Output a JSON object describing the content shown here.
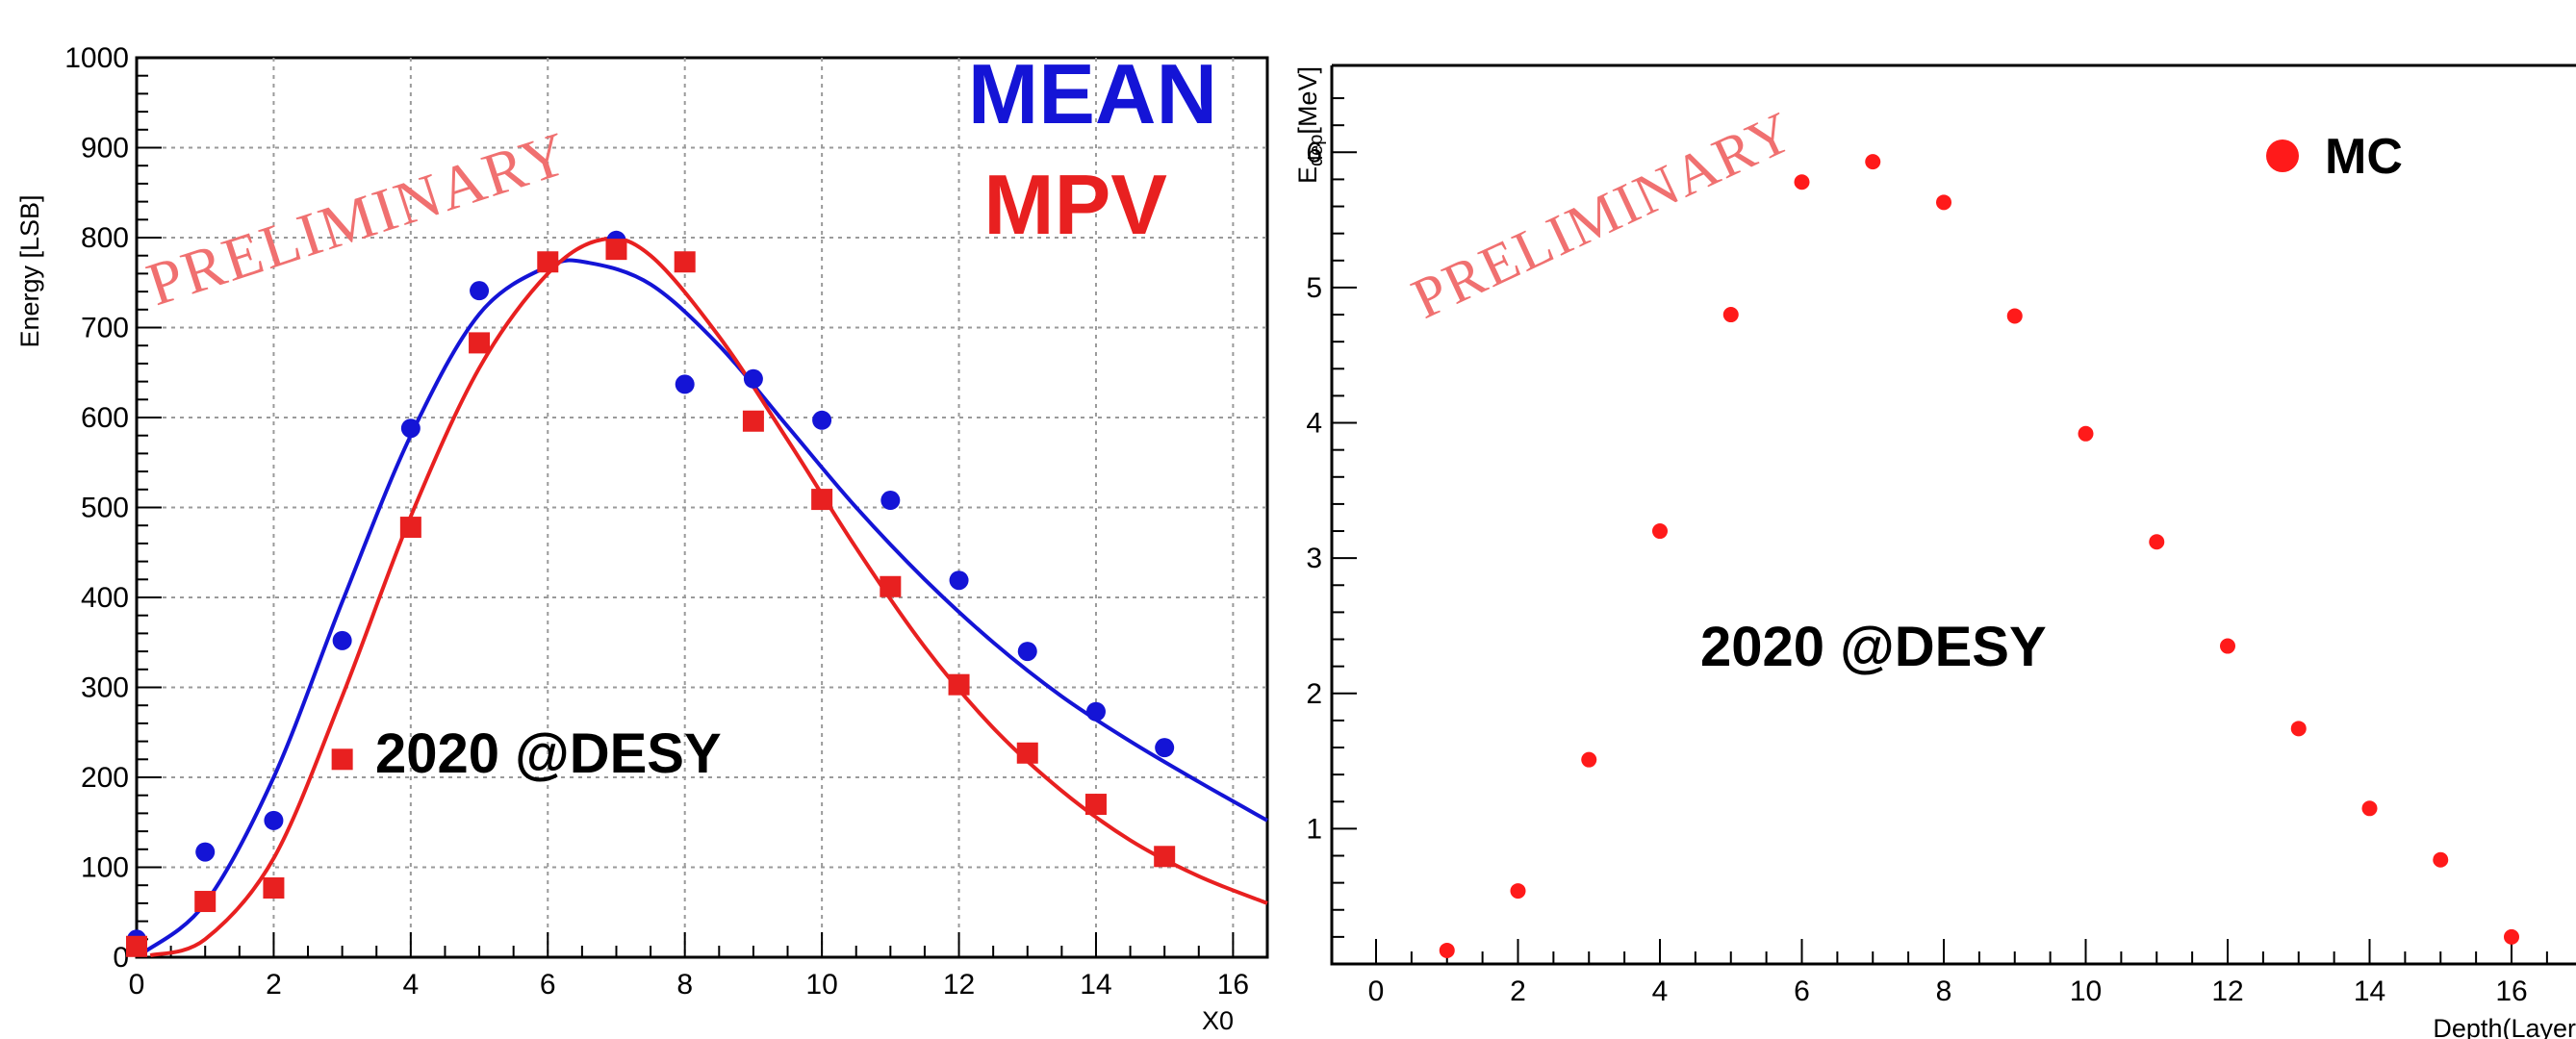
{
  "annotations": {
    "preliminary": "PRELIMINARY",
    "beam_test": "2020 @DESY"
  },
  "colors": {
    "mean": "#1414d6",
    "mpv": "#e82020",
    "mc": "#ff1a1a",
    "watermark": "#f07070"
  },
  "chart_data": [
    {
      "type": "scatter",
      "xlabel": "X0",
      "ylabel": "Energy [LSB]",
      "xlim": [
        0,
        16.5
      ],
      "ylim": [
        0,
        1000
      ],
      "x_ticks": [
        0,
        2,
        4,
        6,
        8,
        10,
        12,
        14,
        16
      ],
      "x_ticks_labeled": [
        0,
        2,
        4,
        6,
        8,
        10,
        12,
        14,
        16
      ],
      "y_ticks": [
        0,
        100,
        200,
        300,
        400,
        500,
        600,
        700,
        800,
        900,
        1000
      ],
      "y_ticks_labeled": [
        0,
        100,
        200,
        300,
        400,
        500,
        600,
        700,
        800,
        900,
        1000
      ],
      "grid": true,
      "legend_placement": "top-right",
      "series": [
        {
          "name": "MEAN",
          "marker": "circle",
          "color": "#1414d6",
          "x": [
            0,
            1,
            2,
            3,
            4,
            5,
            6,
            7,
            8,
            9,
            10,
            11,
            12,
            13,
            14,
            15
          ],
          "y": [
            20,
            117,
            152,
            352,
            588,
            741,
            773,
            797,
            637,
            643,
            597,
            508,
            419,
            340,
            273,
            233
          ],
          "fit_line": true
        },
        {
          "name": "MPV",
          "marker": "square",
          "color": "#e82020",
          "x": [
            0,
            1,
            2,
            3,
            4,
            5,
            6,
            7,
            8,
            9,
            10,
            11,
            12,
            13,
            14,
            15
          ],
          "y": [
            12,
            62,
            77,
            220,
            478,
            683,
            773,
            787,
            773,
            596,
            509,
            412,
            303,
            227,
            170,
            112
          ],
          "fit_line": true
        }
      ]
    },
    {
      "type": "scatter",
      "xlabel": "Depth(Layer",
      "ylabel": "E_dep[MeV]",
      "ylabel_main": "E",
      "ylabel_sub": "dep",
      "ylabel_unit": "[MeV]",
      "xlim": [
        0,
        17
      ],
      "ylim": [
        0,
        6.5
      ],
      "x_ticks": [
        0,
        2,
        4,
        6,
        8,
        10,
        12,
        14,
        16
      ],
      "x_ticks_labeled": [
        0,
        2,
        4,
        6,
        8,
        10,
        12,
        14,
        16
      ],
      "y_ticks": [
        1,
        2,
        3,
        4,
        5,
        6
      ],
      "y_ticks_labeled": [
        1,
        2,
        3,
        4,
        5,
        6
      ],
      "grid": false,
      "legend_placement": "top-right",
      "series": [
        {
          "name": "MC",
          "marker": "circle",
          "color": "#ff1a1a",
          "x": [
            1,
            2,
            3,
            4,
            5,
            6,
            7,
            8,
            9,
            10,
            11,
            12,
            13,
            14,
            15,
            16
          ],
          "y": [
            0.1,
            0.54,
            1.51,
            3.2,
            4.8,
            5.78,
            5.93,
            5.63,
            4.79,
            3.92,
            3.12,
            2.35,
            1.74,
            1.15,
            0.77,
            0.2
          ]
        }
      ]
    }
  ]
}
